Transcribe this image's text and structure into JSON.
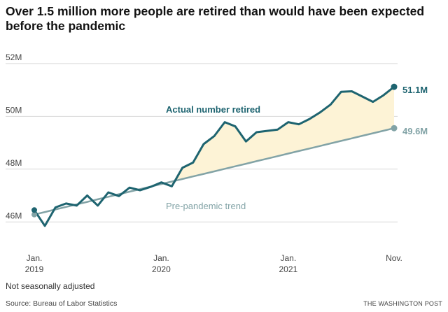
{
  "header": {
    "title": "Over 1.5 million more people are retired than would have been expected before the pandemic"
  },
  "footer": {
    "note": "Not seasonally adjusted",
    "source": "Source: Bureau of Labor Statistics",
    "credit": "THE WASHINGTON POST"
  },
  "colors": {
    "actual": "#1e6470",
    "trend": "#82a3a6",
    "fill": "#fdf3d6",
    "grid": "#d9d9d9",
    "axis_text": "#444444"
  },
  "chart_data": {
    "type": "line",
    "title": "Over 1.5 million more people are retired than would have been expected before the pandemic",
    "xlabel": "",
    "ylabel": "",
    "ylim": [
      45,
      52.5
    ],
    "y_ticks": [
      {
        "value": 46,
        "label": "46M"
      },
      {
        "value": 48,
        "label": "48M"
      },
      {
        "value": 50,
        "label": "50M"
      },
      {
        "value": 52,
        "label": "52M"
      }
    ],
    "x_ticks": [
      {
        "index": 0,
        "line1": "Jan.",
        "line2": "2019"
      },
      {
        "index": 12,
        "line1": "Jan.",
        "line2": "2020"
      },
      {
        "index": 24,
        "line1": "Jan.",
        "line2": "2021"
      },
      {
        "index": 34,
        "line1": "Nov.",
        "line2": ""
      }
    ],
    "grid": true,
    "months_from": "2019-01",
    "series": [
      {
        "name": "Actual number retired",
        "role": "actual",
        "end_label": "51.1M",
        "values": [
          46.45,
          45.85,
          46.55,
          46.7,
          46.62,
          47.0,
          46.62,
          47.12,
          46.98,
          47.3,
          47.2,
          47.33,
          47.5,
          47.35,
          48.05,
          48.25,
          48.95,
          49.25,
          49.78,
          49.62,
          49.05,
          49.4,
          49.45,
          49.5,
          49.78,
          49.7,
          49.9,
          50.15,
          50.45,
          50.93,
          50.95,
          50.75,
          50.55,
          50.8,
          51.12
        ]
      },
      {
        "name": "Pre-pandemic trend",
        "role": "trend",
        "end_label": "49.6M",
        "values": [
          46.28,
          46.376,
          46.473,
          46.569,
          46.665,
          46.761,
          46.858,
          46.954,
          47.05,
          47.146,
          47.242,
          47.339,
          47.435,
          47.531,
          47.627,
          47.724,
          47.82,
          47.916,
          48.012,
          48.108,
          48.205,
          48.301,
          48.397,
          48.493,
          48.59,
          48.686,
          48.782,
          48.878,
          48.975,
          49.071,
          49.167,
          49.263,
          49.36,
          49.456,
          49.552
        ]
      }
    ],
    "fill_between": {
      "from": "actual",
      "to": "trend",
      "start_index": 13
    }
  }
}
